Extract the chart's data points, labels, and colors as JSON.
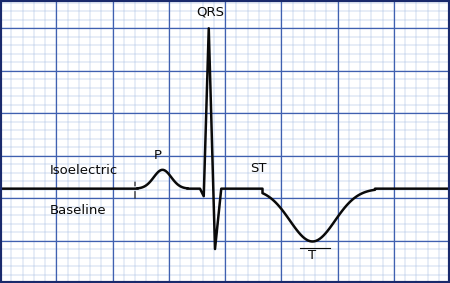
{
  "background_color": "#ffffff",
  "grid_minor_color": "#a0b8e0",
  "grid_major_color": "#4060b0",
  "border_color": "#1a2a6c",
  "line_color": "#0a0a0a",
  "line_width": 1.8,
  "fig_width": 4.5,
  "fig_height": 2.83,
  "dpi": 100,
  "xlim": [
    0,
    18
  ],
  "ylim": [
    -5,
    10
  ],
  "baseline_y": 0.0,
  "isoelectric_label": "Isoelectric",
  "baseline_label": "Baseline",
  "p_label": "P",
  "qrs_label": "QRS",
  "st_label": "ST",
  "t_label": "T",
  "label_fontsize": 9.5,
  "label_color": "#0a0a0a"
}
